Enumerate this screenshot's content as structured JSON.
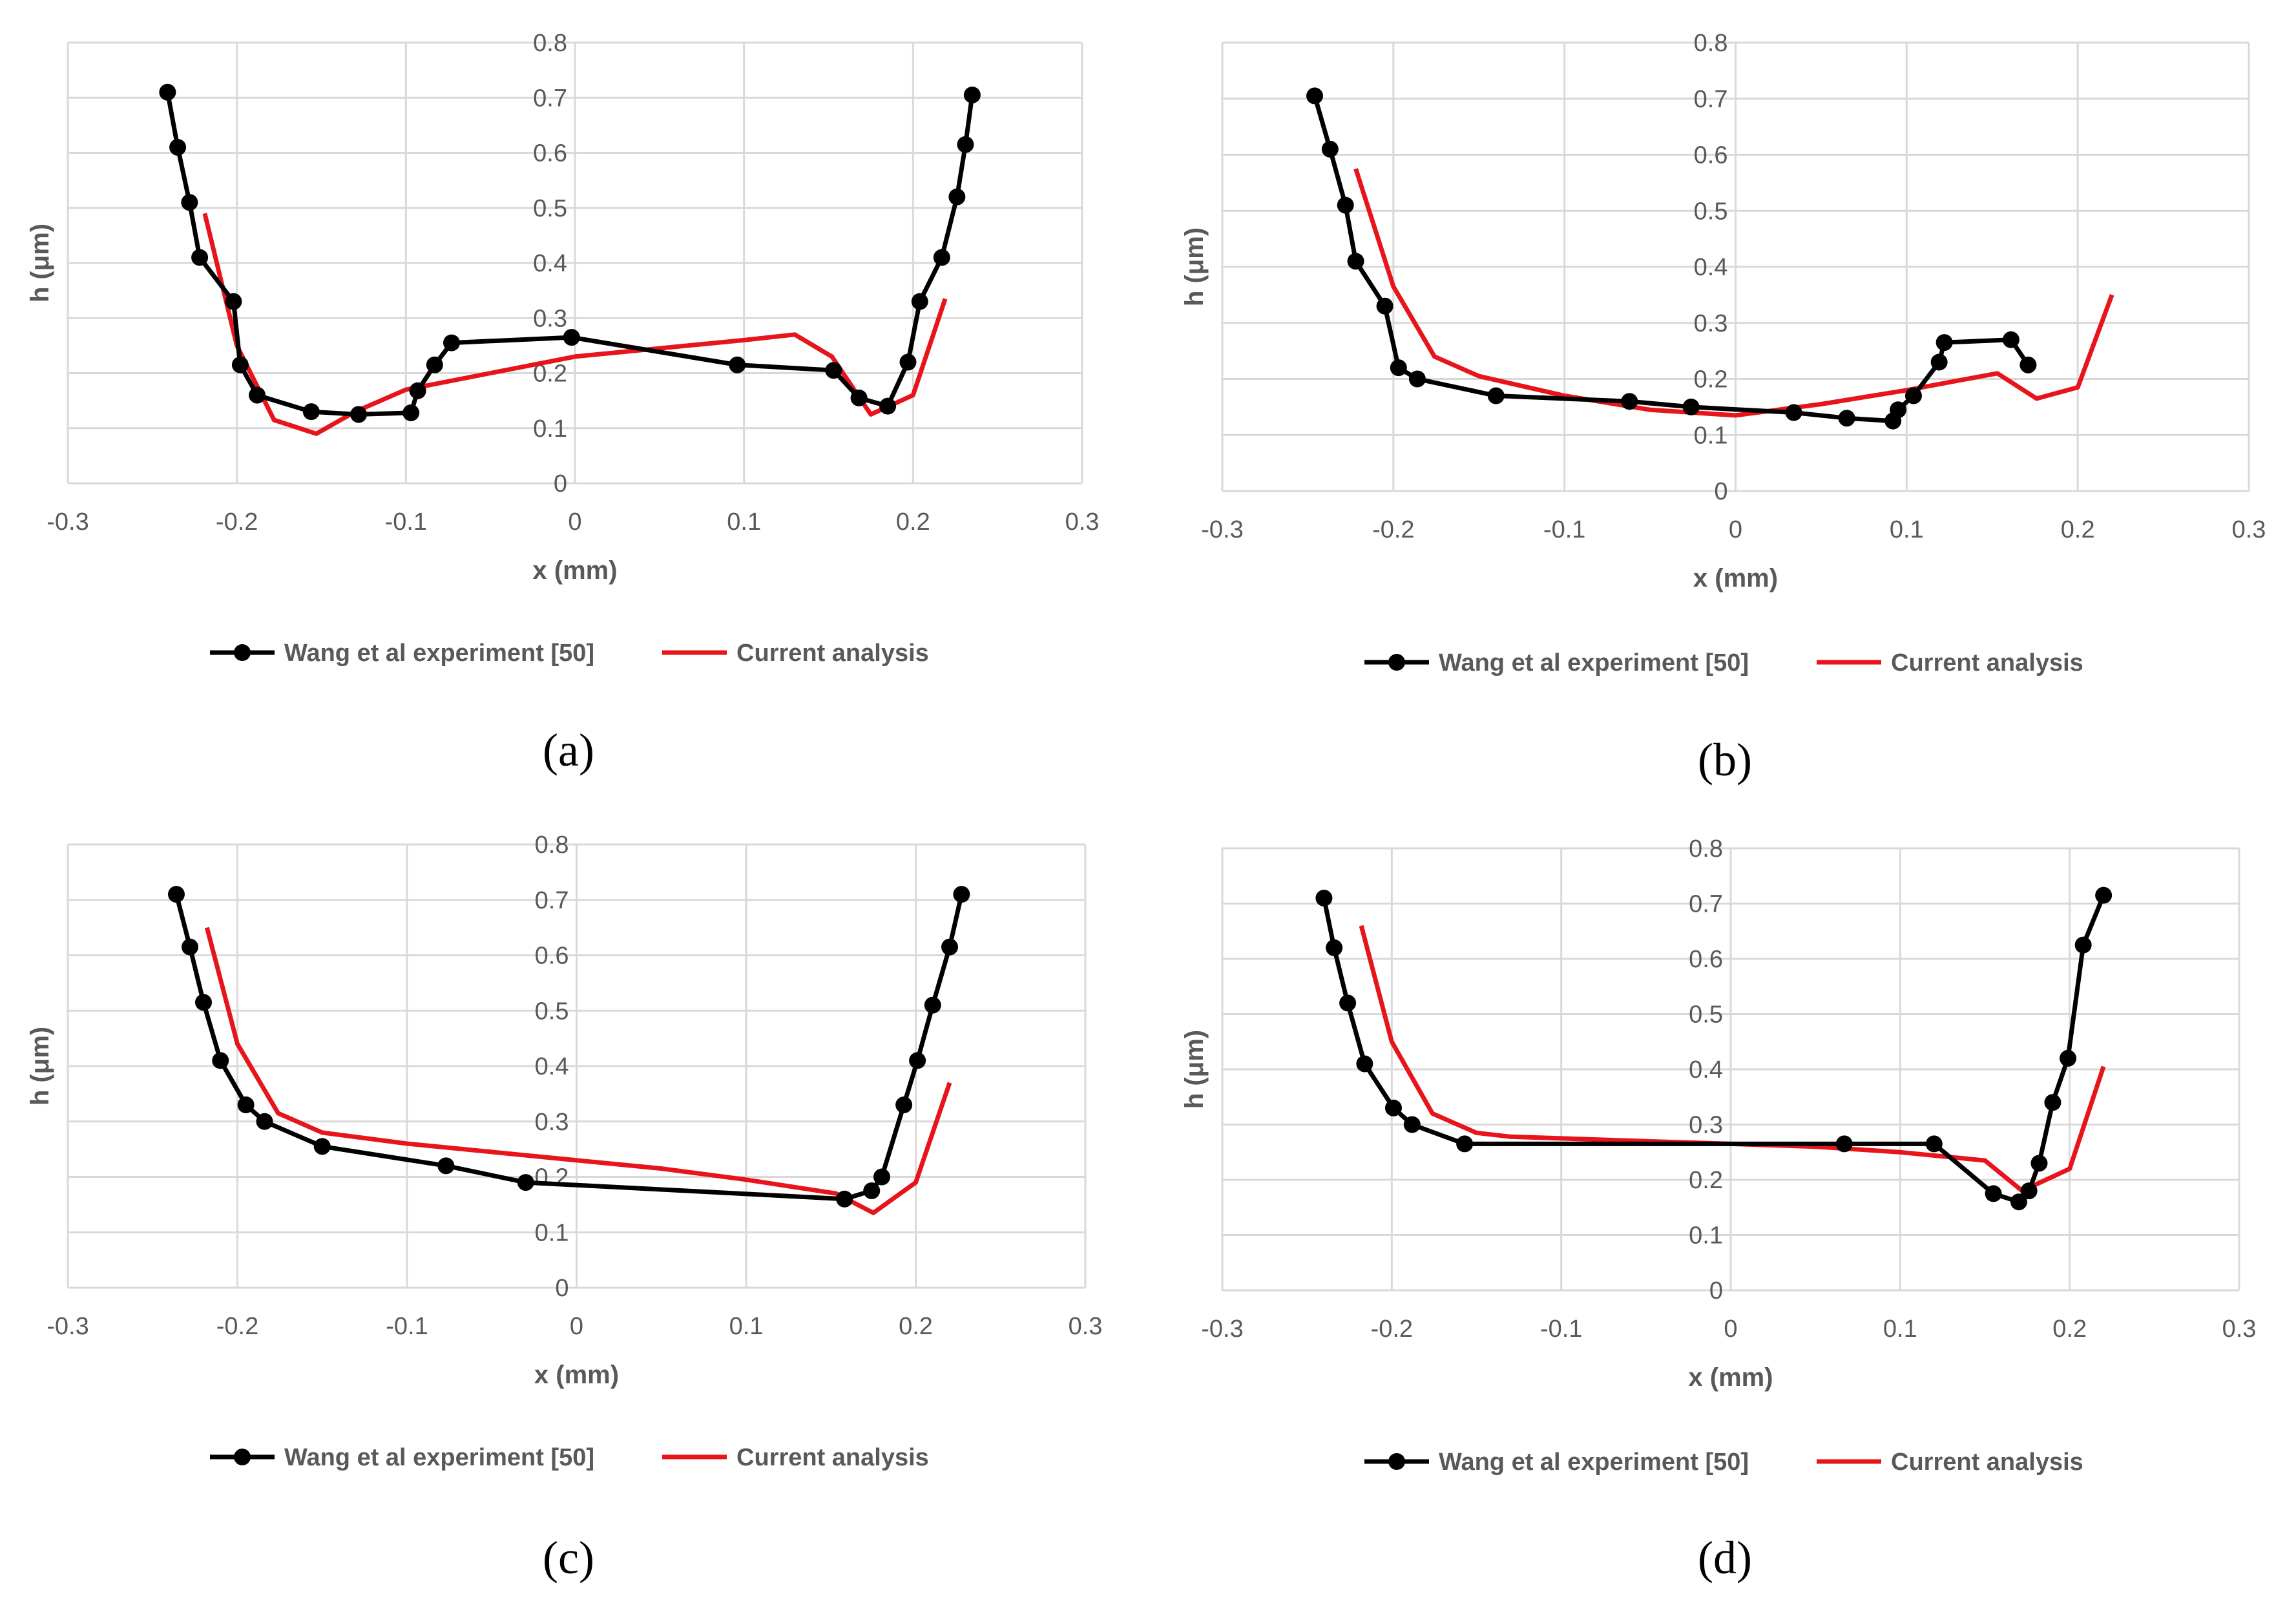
{
  "colors": {
    "experiment": "#000000",
    "analysis": "#e8141b",
    "grid": "#d9d9d9",
    "text": "#595959"
  },
  "chart_data": [
    {
      "type": "line",
      "panel_label": "(a)",
      "xlabel": "x (mm)",
      "ylabel": "h (μm)",
      "xlim": [
        -0.3,
        0.3
      ],
      "ylim": [
        0,
        0.8
      ],
      "xticks": [
        "-0.3",
        "-0.2",
        "-0.1",
        "0",
        "0.1",
        "0.2",
        "0.3"
      ],
      "yticks": [
        "0",
        "0.1",
        "0.2",
        "0.3",
        "0.4",
        "0.5",
        "0.6",
        "0.7",
        "0.8"
      ],
      "grid": true,
      "legend": "bottom",
      "series": [
        {
          "name": "Wang et al experiment [50]",
          "style": "line-markers",
          "x": [
            -0.241,
            -0.235,
            -0.228,
            -0.222,
            -0.202,
            -0.198,
            -0.188,
            -0.156,
            -0.128,
            -0.097,
            -0.093,
            -0.083,
            -0.073,
            -0.002,
            0.096,
            0.153,
            0.168,
            0.185,
            0.197,
            0.204,
            0.217,
            0.226,
            0.231,
            0.235
          ],
          "y": [
            0.71,
            0.61,
            0.51,
            0.41,
            0.33,
            0.215,
            0.16,
            0.13,
            0.125,
            0.128,
            0.168,
            0.215,
            0.255,
            0.265,
            0.215,
            0.205,
            0.155,
            0.14,
            0.22,
            0.33,
            0.41,
            0.52,
            0.615,
            0.705
          ]
        },
        {
          "name": "Current analysis",
          "style": "line",
          "x": [
            -0.219,
            -0.2,
            -0.178,
            -0.153,
            -0.13,
            -0.1,
            -0.05,
            0,
            0.05,
            0.1,
            0.13,
            0.152,
            0.175,
            0.2,
            0.219
          ],
          "y": [
            0.49,
            0.25,
            0.115,
            0.09,
            0.13,
            0.17,
            0.2,
            0.23,
            0.245,
            0.26,
            0.27,
            0.23,
            0.125,
            0.16,
            0.335
          ]
        }
      ]
    },
    {
      "type": "line",
      "panel_label": "(b)",
      "xlabel": "x (mm)",
      "ylabel": "h (μm)",
      "xlim": [
        -0.3,
        0.3
      ],
      "ylim": [
        0,
        0.8
      ],
      "xticks": [
        "-0.3",
        "-0.2",
        "-0.1",
        "0",
        "0.1",
        "0.2",
        "0.3"
      ],
      "yticks": [
        "0",
        "0.1",
        "0.2",
        "0.3",
        "0.4",
        "0.5",
        "0.6",
        "0.7",
        "0.8"
      ],
      "grid": true,
      "legend": "bottom",
      "series": [
        {
          "name": "Wang et al experiment [50]",
          "style": "line-markers",
          "x": [
            -0.246,
            -0.237,
            -0.228,
            -0.222,
            -0.205,
            -0.197,
            -0.186,
            -0.14,
            -0.062,
            -0.026,
            0.034,
            0.065,
            0.092,
            0.095,
            0.104,
            0.119,
            0.122,
            0.161,
            0.171
          ],
          "y": [
            0.705,
            0.61,
            0.51,
            0.41,
            0.33,
            0.22,
            0.2,
            0.17,
            0.16,
            0.15,
            0.14,
            0.13,
            0.125,
            0.145,
            0.17,
            0.23,
            0.265,
            0.27,
            0.225
          ]
        },
        {
          "name": "Current analysis",
          "style": "line",
          "x": [
            -0.222,
            -0.2,
            -0.176,
            -0.15,
            -0.1,
            -0.05,
            0,
            0.05,
            0.1,
            0.153,
            0.176,
            0.2,
            0.22
          ],
          "y": [
            0.575,
            0.365,
            0.24,
            0.205,
            0.17,
            0.145,
            0.135,
            0.155,
            0.18,
            0.21,
            0.165,
            0.185,
            0.35
          ]
        }
      ]
    },
    {
      "type": "line",
      "panel_label": "(c)",
      "xlabel": "x (mm)",
      "ylabel": "h (μm)",
      "xlim": [
        -0.3,
        0.3
      ],
      "ylim": [
        0,
        0.8
      ],
      "xticks": [
        "-0.3",
        "-0.2",
        "-0.1",
        "0",
        "0.1",
        "0.2",
        "0.3"
      ],
      "yticks": [
        "0",
        "0.1",
        "0.2",
        "0.3",
        "0.4",
        "0.5",
        "0.6",
        "0.7",
        "0.8"
      ],
      "grid": true,
      "legend": "bottom",
      "series": [
        {
          "name": "Wang et al experiment [50]",
          "style": "line-markers",
          "x": [
            -0.236,
            -0.228,
            -0.22,
            -0.21,
            -0.195,
            -0.184,
            -0.15,
            -0.077,
            -0.03,
            0.158,
            0.174,
            0.18,
            0.193,
            0.201,
            0.21,
            0.22,
            0.227
          ],
          "y": [
            0.71,
            0.615,
            0.515,
            0.41,
            0.33,
            0.3,
            0.255,
            0.22,
            0.19,
            0.16,
            0.175,
            0.2,
            0.33,
            0.41,
            0.51,
            0.615,
            0.71
          ]
        },
        {
          "name": "Current analysis",
          "style": "line",
          "x": [
            -0.218,
            -0.2,
            -0.176,
            -0.15,
            -0.1,
            -0.05,
            0,
            0.05,
            0.1,
            0.153,
            0.175,
            0.2,
            0.22
          ],
          "y": [
            0.65,
            0.44,
            0.315,
            0.28,
            0.26,
            0.245,
            0.23,
            0.215,
            0.195,
            0.17,
            0.135,
            0.19,
            0.37
          ]
        }
      ]
    },
    {
      "type": "line",
      "panel_label": "(d)",
      "xlabel": "x (mm)",
      "ylabel": "h (μm)",
      "xlim": [
        -0.3,
        0.3
      ],
      "ylim": [
        0,
        0.8
      ],
      "xticks": [
        "-0.3",
        "-0.2",
        "-0.1",
        "0",
        "0.1",
        "0.2",
        "0.3"
      ],
      "yticks": [
        "0",
        "0.1",
        "0.2",
        "0.3",
        "0.4",
        "0.5",
        "0.6",
        "0.7",
        "0.8"
      ],
      "grid": true,
      "legend": "bottom",
      "series": [
        {
          "name": "Wang et al experiment [50]",
          "style": "line-markers",
          "x": [
            -0.24,
            -0.234,
            -0.226,
            -0.216,
            -0.199,
            -0.188,
            -0.157,
            0.067,
            0.12,
            0.155,
            0.17,
            0.176,
            0.182,
            0.19,
            0.199,
            0.208,
            0.22
          ],
          "y": [
            0.71,
            0.62,
            0.52,
            0.41,
            0.33,
            0.3,
            0.265,
            0.265,
            0.265,
            0.175,
            0.16,
            0.18,
            0.23,
            0.34,
            0.42,
            0.625,
            0.715
          ]
        },
        {
          "name": "Current analysis",
          "style": "line",
          "x": [
            -0.218,
            -0.2,
            -0.176,
            -0.15,
            -0.13,
            -0.1,
            -0.05,
            0,
            0.05,
            0.1,
            0.15,
            0.172,
            0.2,
            0.22
          ],
          "y": [
            0.66,
            0.45,
            0.32,
            0.285,
            0.278,
            0.275,
            0.27,
            0.265,
            0.26,
            0.25,
            0.235,
            0.18,
            0.22,
            0.405
          ]
        }
      ]
    }
  ]
}
